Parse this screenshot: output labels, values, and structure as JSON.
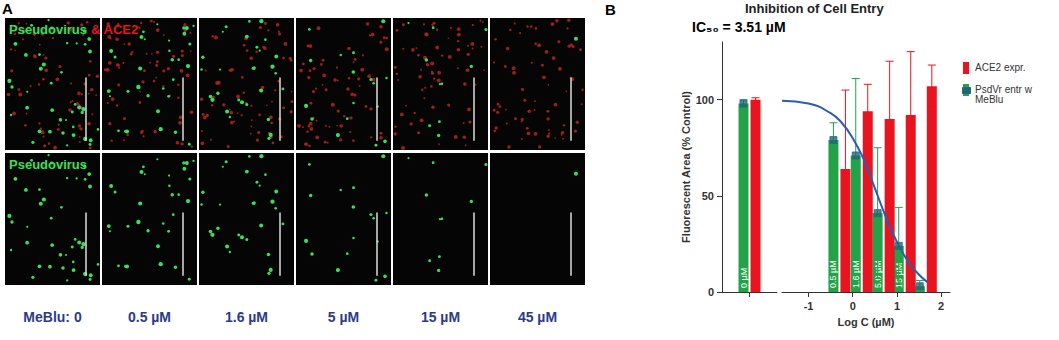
{
  "panel_a": {
    "label": "A",
    "top_row_label": {
      "green": "Pseudovirus",
      "red": "& ACE2"
    },
    "bottom_row_label": "Pseudovirus",
    "columns": [
      "MeBlu: 0",
      "0.5 µM",
      "1.6 µM",
      "5 µM",
      "15 µM",
      "45 µM"
    ]
  },
  "chart_data": {
    "type": "bar",
    "panel_label": "B",
    "title": "Inhibition of Cell Entry",
    "annotation": "IC₅₀ = 3.51 µM",
    "x_label": "Log C (µM)",
    "y_label": "Fluorescent Area (% Control)",
    "control_categories": [
      null
    ],
    "x": [
      -0.301,
      0.204,
      0.699,
      1.176,
      1.653
    ],
    "xlim": [
      -1.6,
      2.2
    ],
    "xticks": [
      -1,
      0,
      1,
      2
    ],
    "ylim": [
      0,
      130
    ],
    "yticks": [
      0,
      50,
      100
    ],
    "legend": "top-right",
    "series": [
      {
        "name": "PsdVr entr w MeBlu",
        "color": "#22a347",
        "marker": "square",
        "marker_color": "#1d6b62",
        "control_value": 98,
        "control_error": 2,
        "control_label": "0 µM",
        "values": [
          79,
          71,
          41,
          24,
          3
        ],
        "errors": [
          9,
          40,
          34,
          20,
          3
        ],
        "bar_labels": [
          "0.5 µM",
          "1.6 µM",
          "5.0 µM",
          "15 µM",
          null
        ]
      },
      {
        "name": "ACE2 expr.",
        "color": "#e8141f",
        "control_value": 100,
        "control_error": 1,
        "values": [
          64,
          94,
          90,
          92,
          107
        ],
        "errors": [
          41,
          14,
          30,
          33,
          11
        ]
      }
    ],
    "fit": {
      "color": "#2a5db0",
      "line_style": "solid",
      "x": [
        -1.6,
        -1.0,
        -0.5,
        -0.25,
        0,
        0.25,
        0.5,
        0.75,
        1.0,
        1.25,
        1.5,
        1.7
      ],
      "y": [
        99.5,
        98,
        93,
        88,
        80,
        69,
        54,
        39,
        26,
        16,
        9,
        5
      ]
    }
  }
}
